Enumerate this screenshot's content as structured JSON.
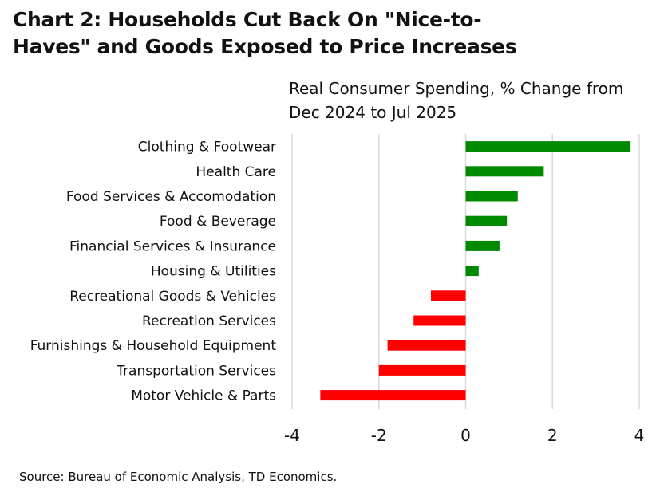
{
  "header": {
    "title": "Chart 2: Households Cut Back On \"Nice-to-Haves\" and Goods Exposed to Price Increases",
    "subtitle": "Real Consumer Spending, % Change from Dec 2024 to Jul 2025"
  },
  "footer": {
    "source": "Source: Bureau of Economic Analysis, TD Economics."
  },
  "colors": {
    "positive": "#008a00",
    "negative": "#ff0000",
    "gridline": "#d9d9d9"
  },
  "chart_data": {
    "type": "bar",
    "orientation": "horizontal",
    "title": "Chart 2: Households Cut Back On \"Nice-to-Haves\" and Goods Exposed to Price Increases",
    "subtitle": "Real Consumer Spending, % Change from Dec 2024 to Jul 2025",
    "xlabel": "",
    "ylabel": "",
    "xlim": [
      -4,
      4
    ],
    "xticks": [
      -4,
      -2,
      0,
      2,
      4
    ],
    "xtick_labels": [
      "-4",
      "-2",
      "0",
      "2",
      "4"
    ],
    "grid": "vertical",
    "legend": "none",
    "categories": [
      "Clothing & Footwear",
      "Health Care",
      "Food Services & Accomodation",
      "Food & Beverage",
      "Financial Services & Insurance",
      "Housing & Utilities",
      "Recreational Goods & Vehicles",
      "Recreation Services",
      "Furnishings & Household Equipment",
      "Transportation Services",
      "Motor Vehicle & Parts"
    ],
    "values": [
      3.8,
      1.8,
      1.2,
      0.95,
      0.78,
      0.3,
      -0.8,
      -1.2,
      -1.8,
      -2.0,
      -3.35
    ]
  }
}
